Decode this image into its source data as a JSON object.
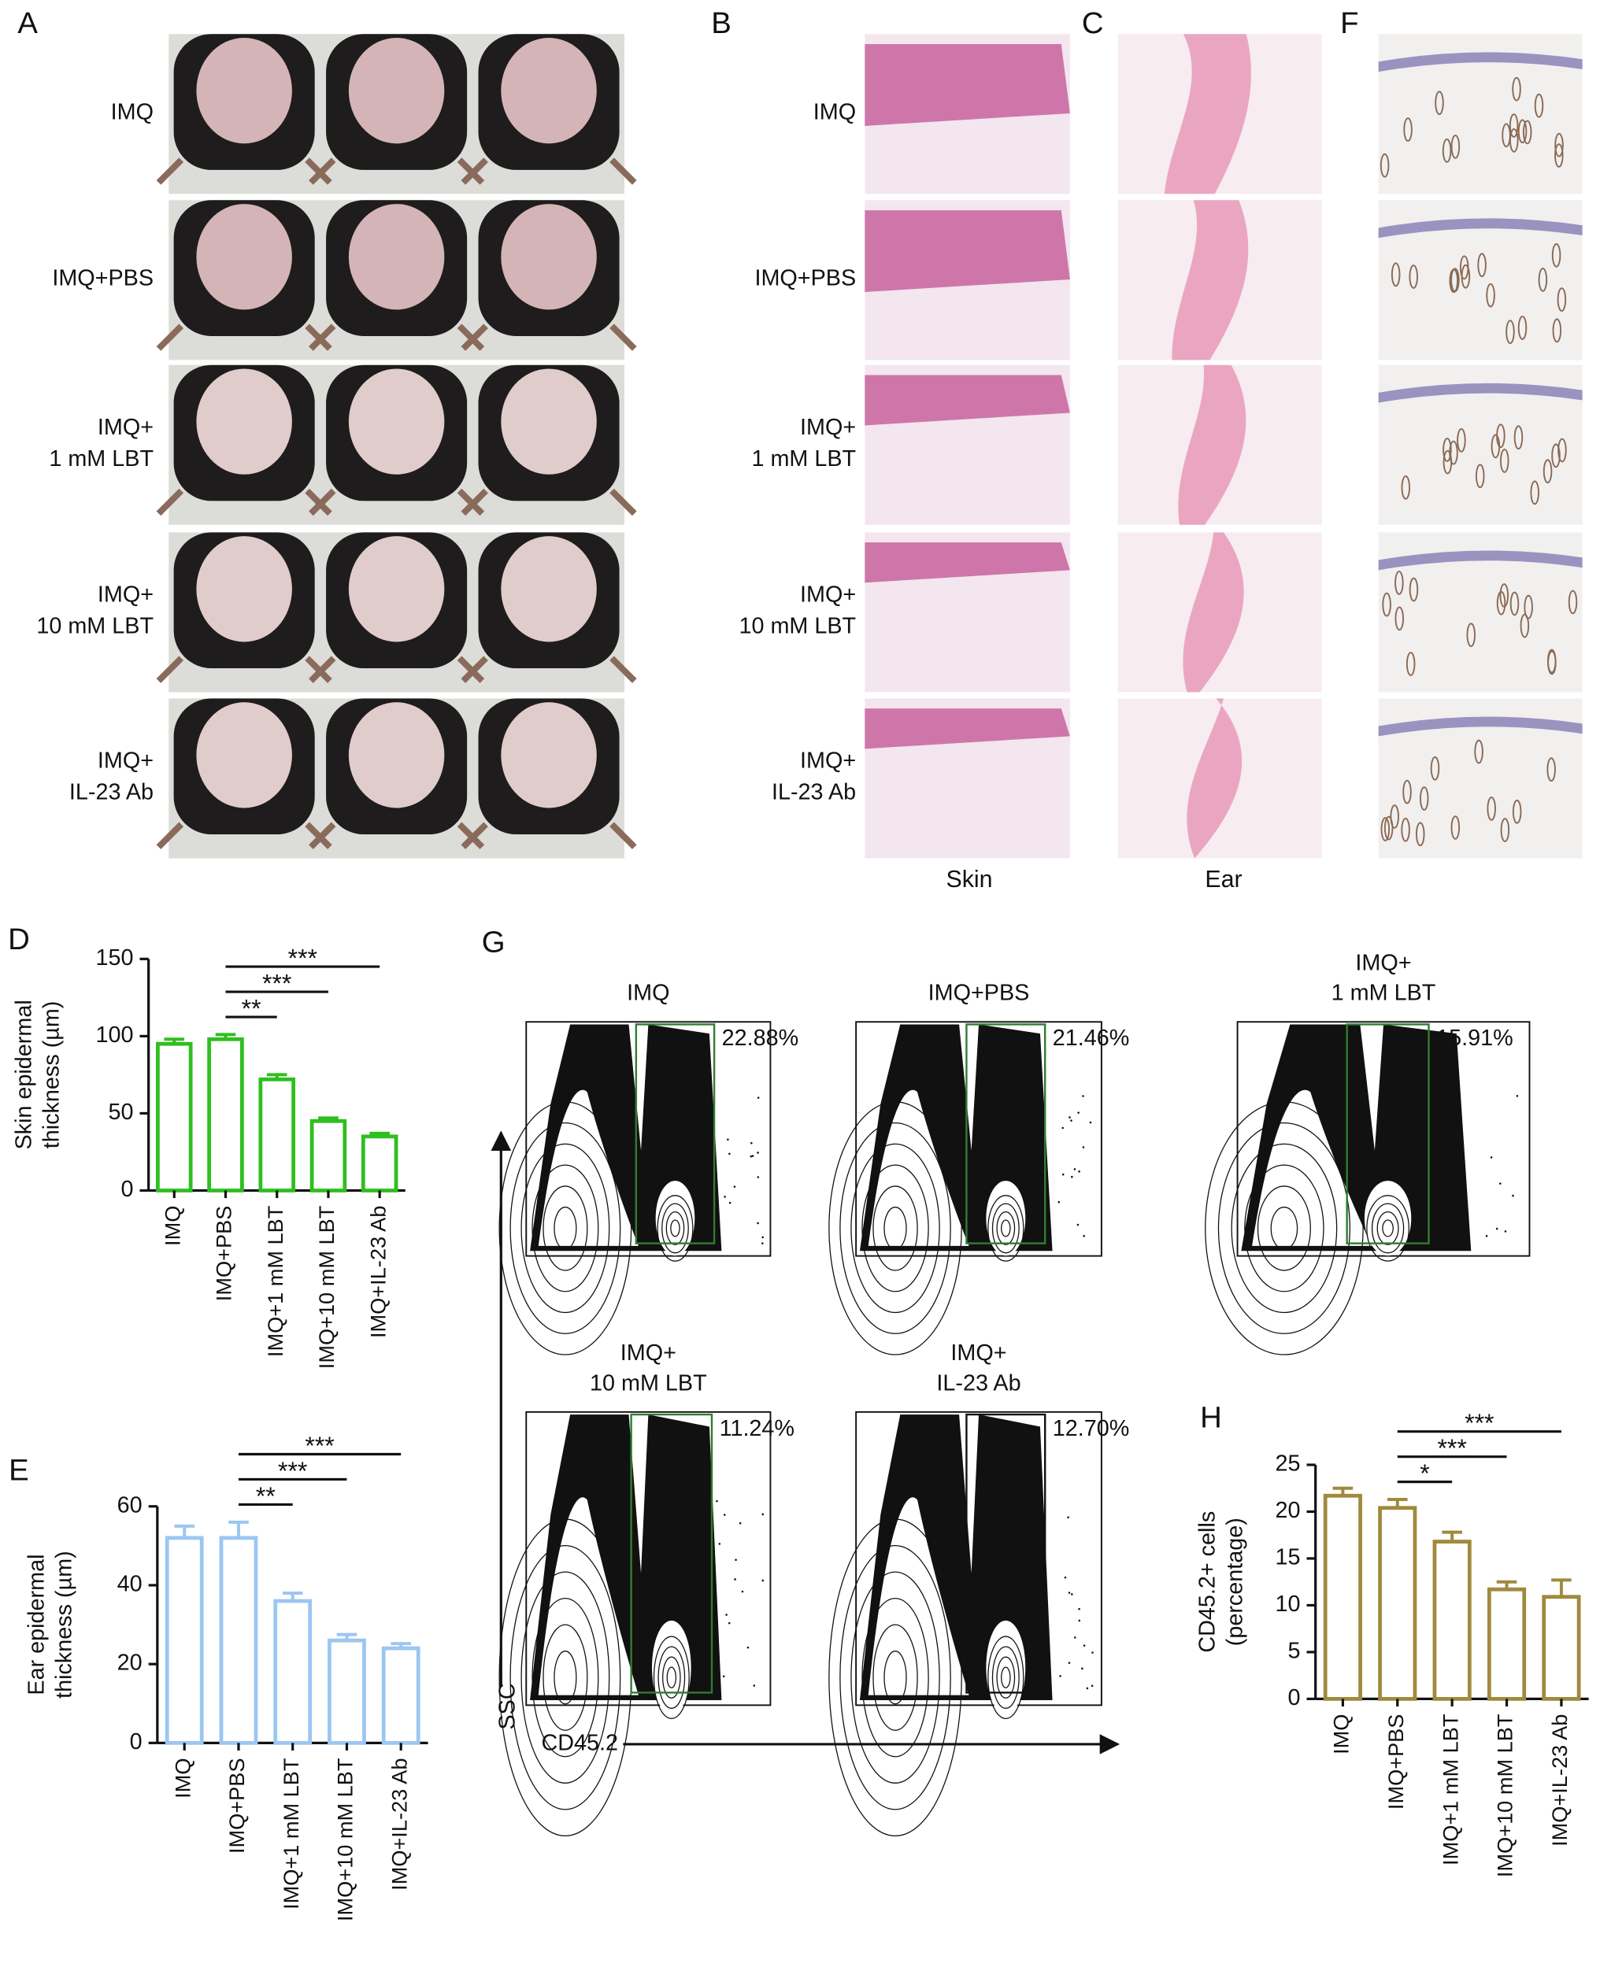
{
  "panel_labels": {
    "A": "A",
    "B": "B",
    "C": "C",
    "F": "F",
    "G": "G"
  },
  "groups": [
    [
      "IMQ"
    ],
    [
      "IMQ+PBS"
    ],
    [
      "IMQ+",
      "1 mM LBT"
    ],
    [
      "IMQ+",
      "10 mM LBT"
    ],
    [
      "IMQ+",
      "IL-23 Ab"
    ]
  ],
  "captions": {
    "skin": "Skin",
    "ear": "Ear"
  },
  "flow": {
    "y_label": "SSC",
    "x_label": "CD45.2",
    "gates": [
      "22.88%",
      "21.46%",
      "15.91%",
      "11.24%",
      "12.70%"
    ]
  },
  "chart_data": [
    {
      "type": "bar",
      "label": "D",
      "ylabel": [
        "Skin epidermal",
        "thickness (µm)"
      ],
      "categories": [
        "IMQ",
        "IMQ+PBS",
        "IMQ+1 mM LBT",
        "IMQ+10 mM LBT",
        "IMQ+IL-23 Ab"
      ],
      "values": [
        95,
        98,
        72,
        45,
        35
      ],
      "errors": [
        3,
        3,
        3,
        2,
        2
      ],
      "color": "#2fbf1f",
      "ylim": [
        0,
        150
      ],
      "yticks": [
        0,
        50,
        100,
        150
      ],
      "annotations": [
        {
          "from": "IMQ+PBS",
          "to": "IMQ+1 mM LBT",
          "label": "**"
        },
        {
          "from": "IMQ+PBS",
          "to": "IMQ+10 mM LBT",
          "label": "***"
        },
        {
          "from": "IMQ+PBS",
          "to": "IMQ+IL-23 Ab",
          "label": "***"
        }
      ]
    },
    {
      "type": "bar",
      "label": "E",
      "ylabel": [
        "Ear epidermal",
        "thickness (µm)"
      ],
      "categories": [
        "IMQ",
        "IMQ+PBS",
        "IMQ+1 mM LBT",
        "IMQ+10 mM LBT",
        "IMQ+IL-23 Ab"
      ],
      "values": [
        52,
        52,
        36,
        26,
        24
      ],
      "errors": [
        3,
        4,
        2,
        1.5,
        1.2
      ],
      "color": "#9cc6f2",
      "ylim": [
        0,
        60
      ],
      "yticks": [
        0,
        20,
        40,
        60
      ],
      "annotations": [
        {
          "from": "IMQ+PBS",
          "to": "IMQ+1 mM LBT",
          "label": "**"
        },
        {
          "from": "IMQ+PBS",
          "to": "IMQ+10 mM LBT",
          "label": "***"
        },
        {
          "from": "IMQ+PBS",
          "to": "IMQ+IL-23 Ab",
          "label": "***"
        }
      ]
    },
    {
      "type": "bar",
      "label": "H",
      "ylabel": [
        "CD45.2+ cells",
        "(percentage)"
      ],
      "categories": [
        "IMQ",
        "IMQ+PBS",
        "IMQ+1 mM LBT",
        "IMQ+10 mM LBT",
        "IMQ+IL-23 Ab"
      ],
      "values": [
        21.7,
        20.4,
        16.8,
        11.7,
        10.9
      ],
      "errors": [
        0.8,
        0.9,
        1,
        0.8,
        1.8
      ],
      "color": "#a08a3c",
      "ylim": [
        0,
        25
      ],
      "yticks": [
        0,
        5,
        10,
        15,
        20,
        25
      ],
      "annotations": [
        {
          "from": "IMQ+PBS",
          "to": "IMQ+1 mM LBT",
          "label": "*"
        },
        {
          "from": "IMQ+PBS",
          "to": "IMQ+10 mM LBT",
          "label": "***"
        },
        {
          "from": "IMQ+PBS",
          "to": "IMQ+IL-23 Ab",
          "label": "***"
        }
      ]
    }
  ]
}
